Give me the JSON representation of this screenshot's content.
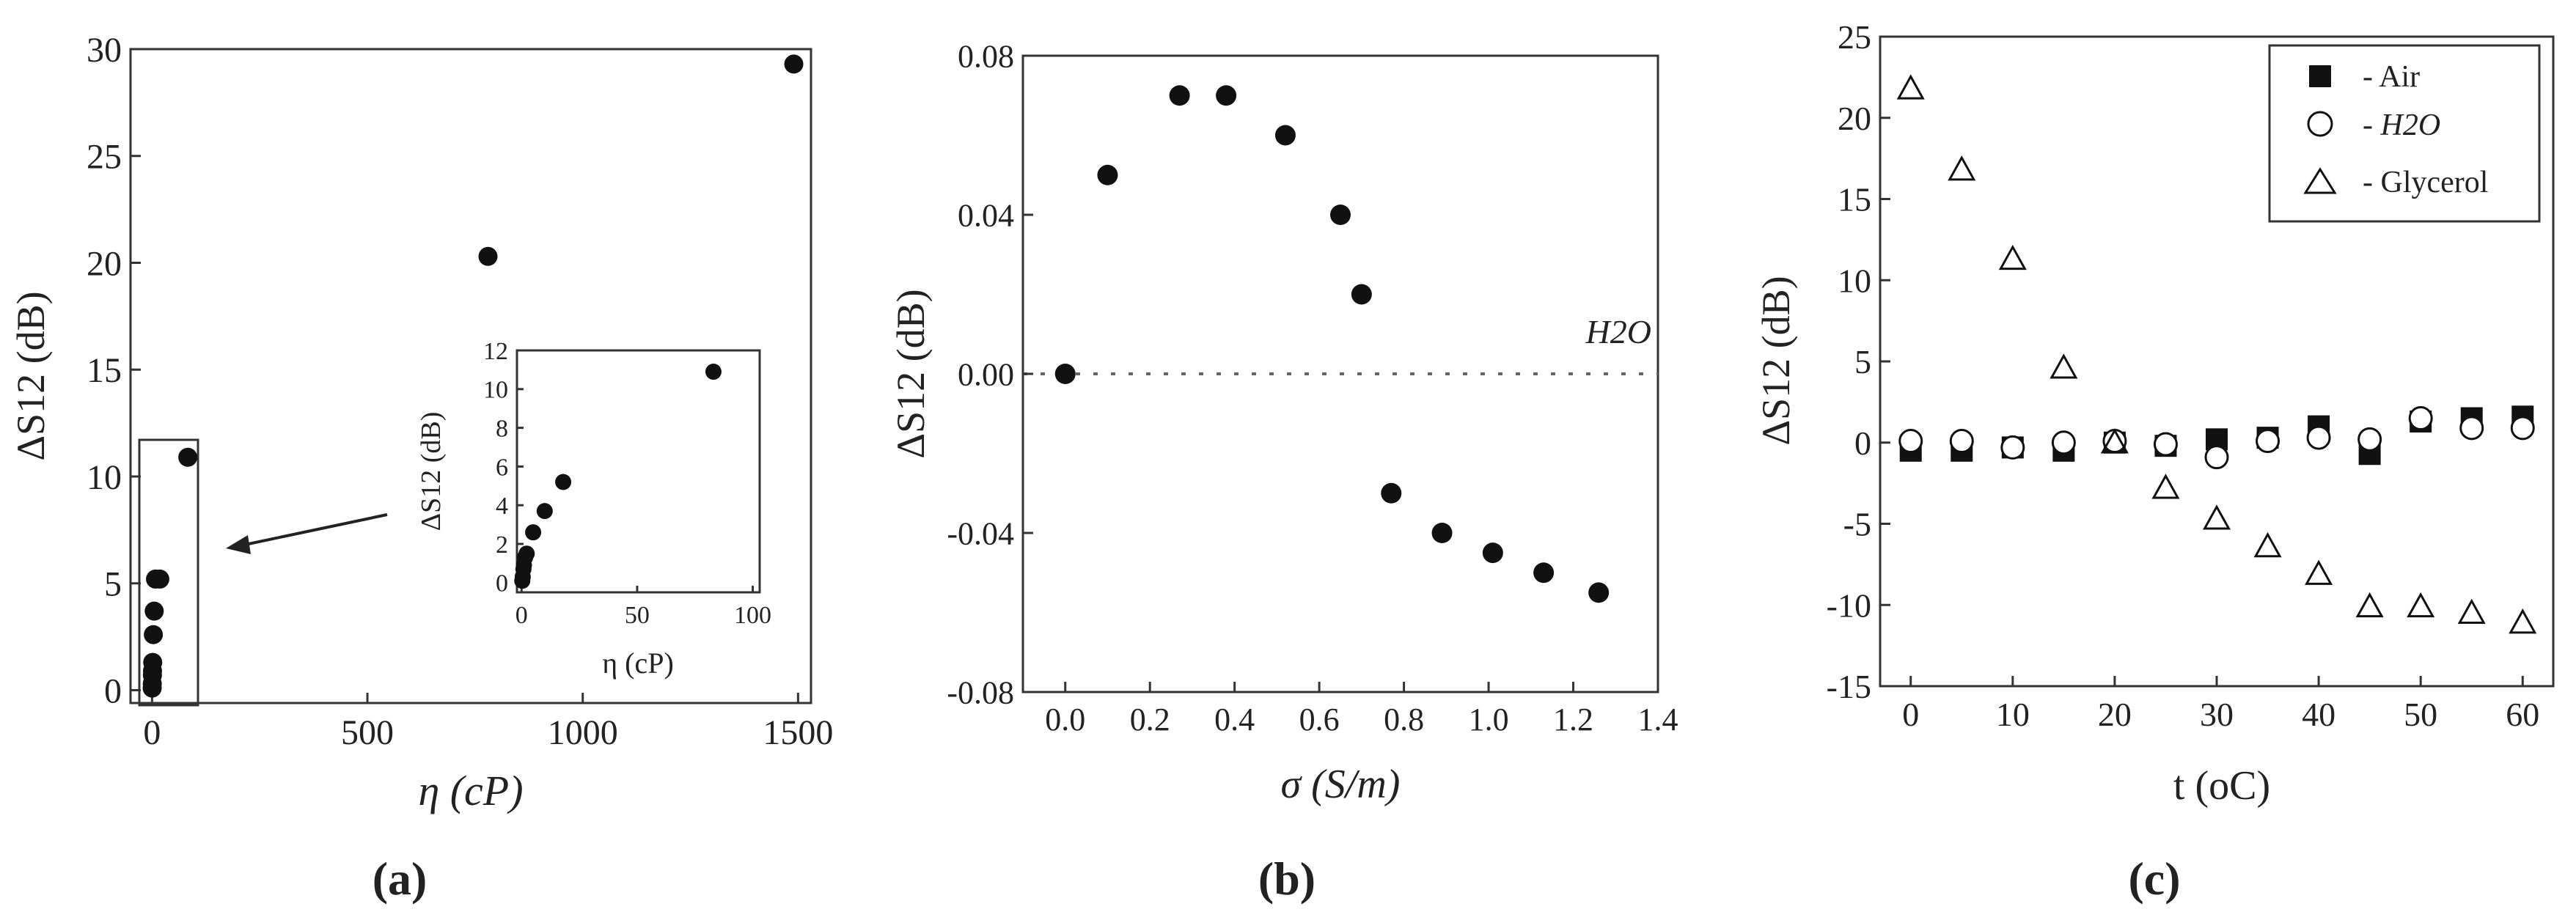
{
  "chart_data": [
    {
      "type": "scatter",
      "panel_label": "(a)",
      "xlabel": "η (cP)",
      "ylabel": "ΔS12 (dB)",
      "xlim": [
        -50,
        1530
      ],
      "ylim": [
        -0.6,
        30
      ],
      "xticks": [
        "0",
        "500",
        "1000",
        "1500"
      ],
      "yticks": [
        "0",
        "5",
        "10",
        "15",
        "20",
        "25",
        "30"
      ],
      "grid": false,
      "series": [
        {
          "marker": "filled-circle",
          "x": [
            0.3,
            0.5,
            0.8,
            1.0,
            1.5,
            3,
            5,
            8,
            18,
            83,
            780,
            1490
          ],
          "y": [
            0.1,
            0.3,
            0.7,
            0.9,
            1.3,
            2.6,
            3.7,
            5.2,
            5.2,
            10.9,
            20.3,
            29.3
          ]
        }
      ],
      "inset": {
        "xlabel": "η (cP)",
        "ylabel": "ΔS12 (dB)",
        "xlim": [
          -2,
          103
        ],
        "ylim": [
          -0.5,
          12
        ],
        "xticks": [
          "0",
          "50",
          "100"
        ],
        "yticks": [
          "0",
          "2",
          "4",
          "6",
          "8",
          "10",
          "12"
        ],
        "series": [
          {
            "marker": "filled-circle",
            "x": [
              0.3,
              0.5,
              0.8,
              1.0,
              1.5,
              2.2,
              5,
              10,
              18,
              83
            ],
            "y": [
              0.1,
              0.3,
              0.7,
              0.9,
              1.3,
              1.5,
              2.6,
              3.7,
              5.2,
              10.9
            ]
          }
        ]
      }
    },
    {
      "type": "scatter",
      "panel_label": "(b)",
      "xlabel": "σ (S/m)",
      "ylabel": "ΔS12 (dB)",
      "xlim": [
        -0.1,
        1.4
      ],
      "ylim": [
        -0.08,
        0.08
      ],
      "xticks": [
        "0.0",
        "0.2",
        "0.4",
        "0.6",
        "0.8",
        "1.0",
        "1.2",
        "1.4"
      ],
      "yticks": [
        "0.08",
        "0.04",
        "0.00",
        "-0.04",
        "-0.08"
      ],
      "grid": false,
      "reference_line": {
        "y": 0.0,
        "label": "H2O"
      },
      "series": [
        {
          "marker": "filled-circle",
          "x": [
            0.0,
            0.1,
            0.27,
            0.38,
            0.52,
            0.65,
            0.7,
            0.77,
            0.89,
            1.01,
            1.13,
            1.26
          ],
          "y": [
            0.0,
            0.05,
            0.07,
            0.07,
            0.06,
            0.04,
            0.02,
            -0.03,
            -0.04,
            -0.045,
            -0.05,
            -0.055
          ]
        }
      ]
    },
    {
      "type": "scatter",
      "panel_label": "(c)",
      "xlabel": "t (oC)",
      "ylabel": "ΔS12 (dB)",
      "xlim": [
        -3,
        63
      ],
      "ylim": [
        -15,
        25
      ],
      "xticks": [
        "0",
        "10",
        "20",
        "30",
        "40",
        "50",
        "60"
      ],
      "yticks": [
        "25",
        "20",
        "15",
        "10",
        "5",
        "0",
        "-5",
        "-10",
        "-15"
      ],
      "grid": false,
      "legend_position": "top-right",
      "series": [
        {
          "name": "- Air",
          "marker": "filled-square",
          "x": [
            0,
            5,
            10,
            15,
            20,
            25,
            30,
            35,
            40,
            45,
            50,
            55,
            60
          ],
          "y": [
            -0.5,
            -0.5,
            -0.3,
            -0.5,
            0.0,
            -0.2,
            0.2,
            0.3,
            1.0,
            -0.7,
            1.3,
            1.5,
            1.6
          ]
        },
        {
          "name": "- H2O",
          "marker": "open-circle",
          "x": [
            0,
            5,
            10,
            15,
            20,
            25,
            30,
            35,
            40,
            45,
            50,
            55,
            60
          ],
          "y": [
            0.1,
            0.1,
            -0.3,
            0.0,
            0.1,
            -0.1,
            -0.9,
            0.1,
            0.3,
            0.2,
            1.5,
            0.9,
            0.9
          ]
        },
        {
          "name": "- Glycerol",
          "marker": "open-triangle",
          "x": [
            0,
            5,
            10,
            15,
            20,
            25,
            30,
            35,
            40,
            45,
            50,
            55,
            60
          ],
          "y": [
            21.8,
            16.8,
            11.3,
            4.6,
            0.0,
            -2.8,
            -4.7,
            -6.4,
            -8.1,
            -10.1,
            -10.1,
            -10.5,
            -11.1
          ]
        }
      ]
    }
  ]
}
